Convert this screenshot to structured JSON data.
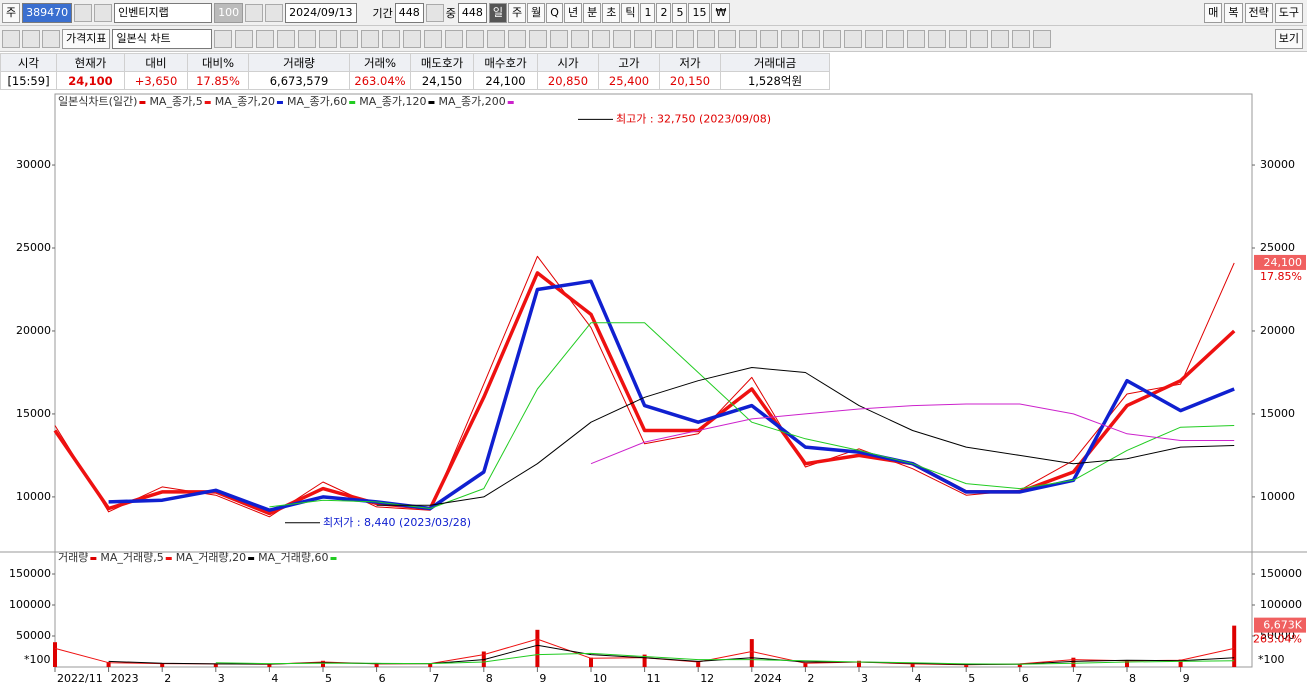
{
  "toolbar": {
    "market": "주",
    "code": "389470",
    "name": "인벤티지랩",
    "count": "100",
    "date": "2024/09/13",
    "period_label": "기간",
    "period": "448",
    "mid_label": "중",
    "mid": "448",
    "periods": [
      "일",
      "주",
      "월",
      "Q",
      "년",
      "분",
      "초",
      "틱",
      "1",
      "2",
      "5",
      "15",
      "₩"
    ],
    "right_buttons": [
      "매",
      "복",
      "전략",
      "도구"
    ],
    "indicator": "가격지표",
    "chart_style": "일본식 차트",
    "view": "보기"
  },
  "quote": {
    "headers": [
      "시각",
      "현재가",
      "대비",
      "대비%",
      "거래량",
      "거래%",
      "매도호가",
      "매수호가",
      "시가",
      "고가",
      "저가",
      "거래대금"
    ],
    "values": [
      "[15:59]",
      "24,100",
      "+3,650",
      "17.85%",
      "6,673,579",
      "263.04%",
      "24,150",
      "24,100",
      "20,850",
      "25,400",
      "20,150",
      "1,528억원"
    ]
  },
  "chart_data": [
    {
      "type": "line",
      "categories": [
        "2022/11",
        "2023",
        "2",
        "3",
        "4",
        "5",
        "6",
        "7",
        "8",
        "9",
        "10",
        "11",
        "12",
        "2024",
        "2",
        "3",
        "4",
        "5",
        "6",
        "7",
        "8",
        "9",
        null
      ],
      "ylim": [
        6800,
        34100
      ],
      "yticks": [
        10000,
        15000,
        20000,
        25000,
        30000
      ],
      "series": [
        {
          "name": "일본식차트(일간)",
          "color": "#e00000",
          "width": 1,
          "values": [
            14300,
            9100,
            10600,
            10100,
            8800,
            10900,
            9400,
            9200,
            16800,
            24500,
            20200,
            13200,
            13800,
            17200,
            11800,
            12900,
            11700,
            10100,
            10400,
            12200,
            16200,
            16800,
            24100
          ]
        },
        {
          "name": "MA_종가,5",
          "color": "#ee1111",
          "width": 3.5,
          "values": [
            14000,
            9300,
            10300,
            10300,
            9000,
            10500,
            9600,
            9300,
            16000,
            23500,
            21000,
            14000,
            14000,
            16500,
            12000,
            12500,
            12000,
            10300,
            10300,
            11500,
            15500,
            17000,
            20000
          ]
        },
        {
          "name": "MA_종가,20",
          "color": "#1020d0",
          "width": 3.5,
          "values": [
            null,
            9700,
            9800,
            10400,
            9200,
            10000,
            9700,
            9300,
            11500,
            22500,
            23000,
            15500,
            14500,
            15500,
            13000,
            12700,
            12000,
            10300,
            10300,
            11000,
            17000,
            15200,
            16500
          ]
        },
        {
          "name": "MA_종가,60",
          "color": "#22cc22",
          "width": 1,
          "values": [
            null,
            null,
            null,
            null,
            9400,
            9800,
            9700,
            9300,
            10500,
            16500,
            20500,
            20500,
            17500,
            14500,
            13500,
            12800,
            12000,
            10800,
            10500,
            11000,
            12800,
            14200,
            14300
          ]
        },
        {
          "name": "MA_종가,120",
          "color": "#000000",
          "width": 1,
          "values": [
            null,
            null,
            null,
            null,
            null,
            null,
            9500,
            9500,
            10000,
            12000,
            14500,
            16000,
            17000,
            17800,
            17500,
            15500,
            14000,
            13000,
            12500,
            12000,
            12300,
            13000,
            13100
          ]
        },
        {
          "name": "MA_종가,200",
          "color": "#cc22cc",
          "width": 1,
          "values": [
            null,
            null,
            null,
            null,
            null,
            null,
            null,
            null,
            null,
            null,
            12000,
            13300,
            14000,
            14700,
            15000,
            15300,
            15500,
            15600,
            15600,
            15000,
            13800,
            13400,
            13400
          ]
        }
      ],
      "annotations": [
        {
          "label": "최고가 : 32,750 (2023/09/08)",
          "value": 32750
        },
        {
          "label": "최저가 : 8,440 (2023/03/28)",
          "value": 8440
        }
      ]
    },
    {
      "type": "bar",
      "ylim": [
        0,
        183900
      ],
      "yticks": [
        50000,
        100000,
        150000
      ],
      "unit_label": "*100",
      "badge": "6,673K",
      "series": [
        {
          "name": "거래량",
          "color": "#dd0000",
          "values": [
            40000,
            8000,
            6000,
            5000,
            4000,
            10000,
            5000,
            6000,
            25000,
            60000,
            15000,
            20000,
            8000,
            45000,
            6000,
            10000,
            5000,
            3000,
            5000,
            15000,
            10000,
            12000,
            66736
          ]
        },
        {
          "name": "MA_거래량,5",
          "color": "#ee1111",
          "values": [
            30000,
            7000,
            5500,
            5000,
            4500,
            8000,
            5000,
            5500,
            20000,
            45000,
            14000,
            15000,
            8000,
            25000,
            6000,
            8000,
            5000,
            3500,
            5000,
            12000,
            10000,
            11000,
            30000
          ]
        },
        {
          "name": "MA_거래량,20",
          "color": "#000000",
          "values": [
            null,
            9000,
            6000,
            5000,
            4800,
            7000,
            5500,
            5500,
            12000,
            35000,
            20000,
            15000,
            9000,
            15000,
            8000,
            8000,
            6000,
            4000,
            4500,
            9000,
            11000,
            10000,
            15000
          ]
        },
        {
          "name": "MA_거래량,60",
          "color": "#22cc22",
          "values": [
            null,
            null,
            null,
            7000,
            5500,
            6000,
            6000,
            5500,
            8000,
            20000,
            22000,
            17000,
            12000,
            12000,
            10000,
            8000,
            7000,
            5000,
            4500,
            6000,
            8000,
            9000,
            10000
          ]
        }
      ]
    }
  ]
}
